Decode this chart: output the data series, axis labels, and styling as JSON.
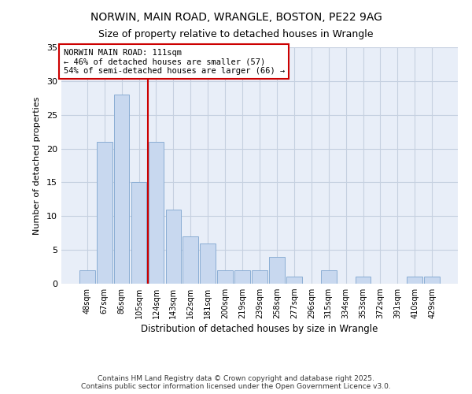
{
  "title1": "NORWIN, MAIN ROAD, WRANGLE, BOSTON, PE22 9AG",
  "title2": "Size of property relative to detached houses in Wrangle",
  "xlabel": "Distribution of detached houses by size in Wrangle",
  "ylabel": "Number of detached properties",
  "categories": [
    "48sqm",
    "67sqm",
    "86sqm",
    "105sqm",
    "124sqm",
    "143sqm",
    "162sqm",
    "181sqm",
    "200sqm",
    "219sqm",
    "239sqm",
    "258sqm",
    "277sqm",
    "296sqm",
    "315sqm",
    "334sqm",
    "353sqm",
    "372sqm",
    "391sqm",
    "410sqm",
    "429sqm"
  ],
  "values": [
    2,
    21,
    28,
    15,
    21,
    11,
    7,
    6,
    2,
    2,
    2,
    4,
    1,
    0,
    2,
    0,
    1,
    0,
    0,
    1,
    1
  ],
  "bar_color": "#c8d8ef",
  "bar_edge_color": "#8aadd4",
  "plot_bg_color": "#e8eef8",
  "fig_bg_color": "#ffffff",
  "grid_color": "#c5d0e0",
  "vline_x": 3.5,
  "vline_color": "#cc0000",
  "annotation_text": "NORWIN MAIN ROAD: 111sqm\n← 46% of detached houses are smaller (57)\n54% of semi-detached houses are larger (66) →",
  "annotation_box_color": "#ffffff",
  "annotation_box_edge": "#cc0000",
  "ylim": [
    0,
    35
  ],
  "yticks": [
    0,
    5,
    10,
    15,
    20,
    25,
    30,
    35
  ],
  "footer": "Contains HM Land Registry data © Crown copyright and database right 2025.\nContains public sector information licensed under the Open Government Licence v3.0."
}
